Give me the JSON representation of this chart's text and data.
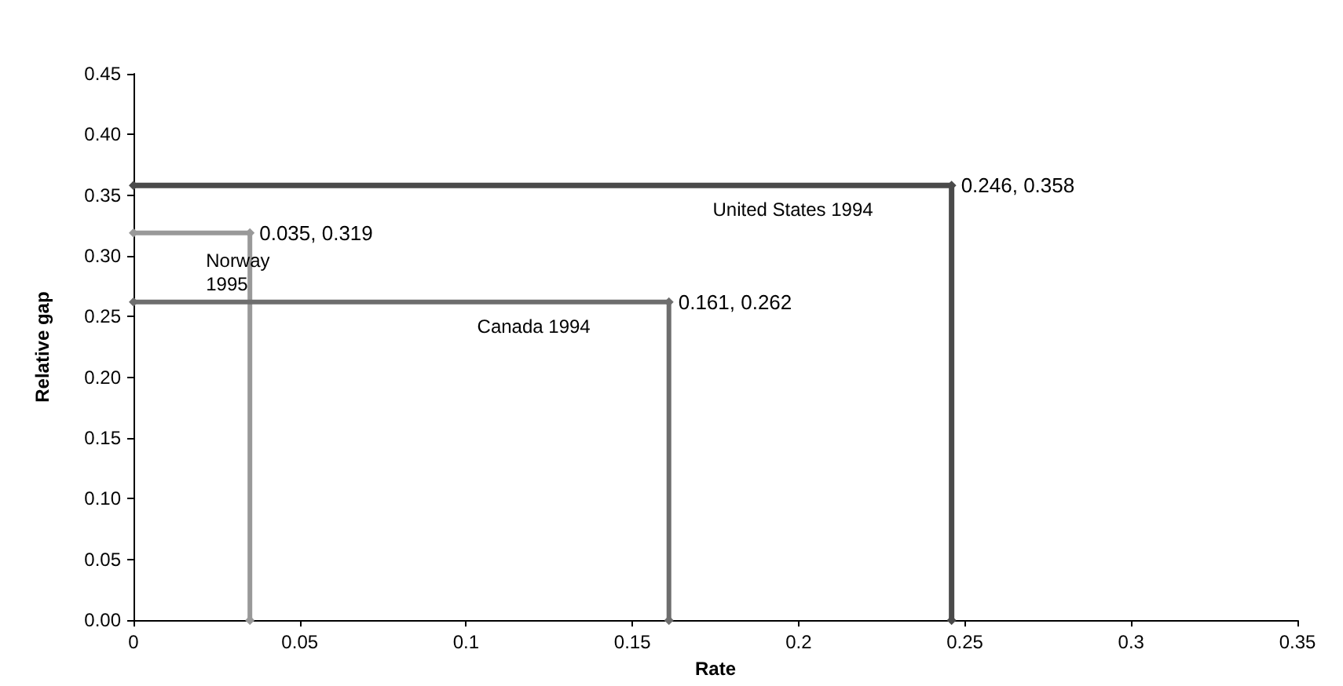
{
  "chart_data": {
    "type": "line",
    "xlabel": "Rate",
    "ylabel": "Relative gap",
    "series": [
      {
        "name": "United States 1994",
        "color": "#4a4a4a",
        "x": [
          0,
          0.246,
          0.246
        ],
        "values": [
          0.358,
          0.358,
          0
        ]
      },
      {
        "name": "Canada 1994",
        "color": "#6e6e6e",
        "x": [
          0,
          0.161,
          0.161
        ],
        "values": [
          0.262,
          0.262,
          0
        ]
      },
      {
        "name": "Norway 1995",
        "color": "#999999",
        "x": [
          0,
          0.035,
          0.035
        ],
        "values": [
          0.319,
          0.319,
          0
        ]
      }
    ],
    "annotations": [
      {
        "text": "0.246, 0.358",
        "x": 0.246,
        "y": 0.358
      },
      {
        "text": "0.161, 0.262",
        "x": 0.161,
        "y": 0.262
      },
      {
        "text": "0.035, 0.319",
        "x": 0.035,
        "y": 0.319
      }
    ],
    "xlim": [
      0,
      0.35
    ],
    "xticks": [
      0,
      0.05,
      0.1,
      0.15,
      0.2,
      0.25,
      0.3,
      0.35
    ],
    "ylim": [
      0,
      0.45
    ],
    "yticks": [
      {
        "value": 0,
        "label": "0.00"
      },
      {
        "value": 0.05,
        "label": "0.05"
      },
      {
        "value": 0.1,
        "label": "0.10"
      },
      {
        "value": 0.15,
        "label": "0.15"
      },
      {
        "value": 0.2,
        "label": "0.20"
      },
      {
        "value": 0.25,
        "label": "0.25"
      },
      {
        "value": 0.3,
        "label": "0.30"
      },
      {
        "value": 0.35,
        "label": "0.35"
      },
      {
        "value": 0.4,
        "label": "0.40"
      },
      {
        "value": 0.45,
        "label": "0.45"
      }
    ],
    "grid": false,
    "legend": false,
    "marker": "diamond",
    "line_style": "solid"
  }
}
